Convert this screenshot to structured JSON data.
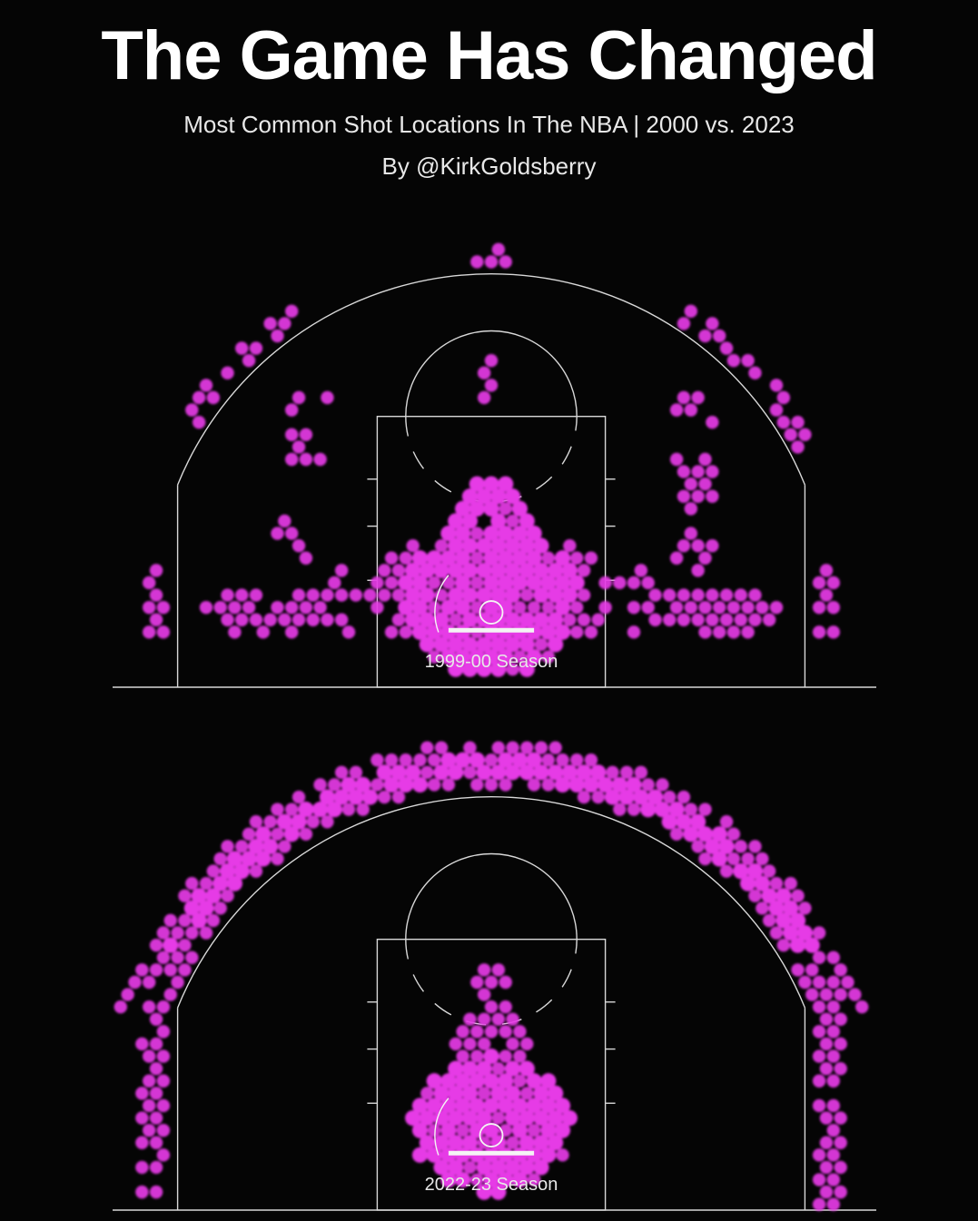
{
  "header": {
    "title": "The Game Has Changed",
    "subtitle": "Most Common Shot Locations In The NBA | 2000 vs. 2023",
    "byline": "By @KirkGoldsberry"
  },
  "colors": {
    "background": "#050505",
    "hex": "#e63be6",
    "lines": "#d8d8d8"
  },
  "chart_data": {
    "type": "hexbin",
    "title": "The Game Has Changed",
    "units": "feet (x from basket center, y from baseline)",
    "panels": [
      {
        "label": "1999-00 Season",
        "zones": [
          {
            "shape": "ellipse",
            "x": 0,
            "y": 6,
            "rx": 6.2,
            "ry": 5.5,
            "density": 1
          },
          {
            "shape": "ellipse",
            "x": 0,
            "y": 10.5,
            "rx": 2.6,
            "ry": 4.5,
            "density": 0.95
          },
          {
            "shape": "ellipse",
            "x": -5.5,
            "y": 6.5,
            "rx": 3,
            "ry": 3.5,
            "density": 0.8
          },
          {
            "shape": "ellipse",
            "x": 5.5,
            "y": 6.5,
            "rx": 3,
            "ry": 3.5,
            "density": 0.8
          },
          {
            "shape": "ellipse",
            "x": -15.5,
            "y": 5.3,
            "rx": 4.8,
            "ry": 1.8,
            "density": 0.9
          },
          {
            "shape": "ellipse",
            "x": 15.5,
            "y": 5.3,
            "rx": 4.8,
            "ry": 1.8,
            "density": 0.9
          },
          {
            "shape": "ellipse",
            "x": -10.5,
            "y": 6,
            "rx": 2.2,
            "ry": 2.2,
            "density": 0.55
          },
          {
            "shape": "ellipse",
            "x": 10.5,
            "y": 6,
            "rx": 2.2,
            "ry": 2.2,
            "density": 0.55
          },
          {
            "shape": "rect",
            "x1": -24.3,
            "x2": -22.8,
            "y1": 3.5,
            "y2": 8.5,
            "density": 0.9
          },
          {
            "shape": "rect",
            "x1": 22.8,
            "x2": 24.3,
            "y1": 3.5,
            "y2": 8.5,
            "density": 0.9
          },
          {
            "shape": "rect",
            "x1": -14.6,
            "x2": -11.5,
            "y1": 15,
            "y2": 21,
            "density": 0.45
          },
          {
            "shape": "rect",
            "x1": 12.6,
            "x2": 15.6,
            "y1": 12,
            "y2": 21,
            "density": 0.45
          },
          {
            "shape": "rect",
            "x1": -15,
            "x2": -13,
            "y1": 9,
            "y2": 12,
            "density": 0.5
          },
          {
            "shape": "rect",
            "x1": 13,
            "x2": 15.5,
            "y1": 8,
            "y2": 11.5,
            "density": 0.5
          },
          {
            "shape": "arc",
            "r1": 24.3,
            "r2": 25.6,
            "a1": -58,
            "a2": -32,
            "density": 0.75
          },
          {
            "shape": "arc",
            "r1": 24.3,
            "r2": 25.6,
            "a1": 30,
            "a2": 62,
            "density": 0.75
          },
          {
            "shape": "ellipse",
            "x": 0,
            "y": 30.3,
            "rx": 1.6,
            "ry": 0.8,
            "density": 0.9
          },
          {
            "shape": "rect",
            "x1": -0.5,
            "x2": 0.5,
            "y1": 19.5,
            "y2": 25,
            "density": 0.3
          }
        ]
      },
      {
        "label": "2022-23 Season",
        "zones": [
          {
            "shape": "arc",
            "r1": 24.4,
            "r2": 27.6,
            "a1": -72,
            "a2": 72,
            "density": 0.85
          },
          {
            "shape": "arc",
            "r1": 25,
            "r2": 26.6,
            "a1": -60,
            "a2": 60,
            "density": 1
          },
          {
            "shape": "rect",
            "x1": -24.6,
            "x2": -22.8,
            "y1": 0.5,
            "y2": 15,
            "density": 0.85
          },
          {
            "shape": "rect",
            "x1": 22.8,
            "x2": 24.6,
            "y1": 0.3,
            "y2": 16,
            "density": 0.85
          },
          {
            "shape": "ellipse",
            "x": 0,
            "y": 6,
            "rx": 5.6,
            "ry": 4.8,
            "density": 1
          },
          {
            "shape": "ellipse",
            "x": 0,
            "y": 10.5,
            "rx": 3,
            "ry": 3.5,
            "density": 0.9
          },
          {
            "shape": "rect",
            "x1": -1.1,
            "x2": 1.1,
            "y1": 10,
            "y2": 17.5,
            "density": 0.85
          }
        ]
      }
    ]
  }
}
